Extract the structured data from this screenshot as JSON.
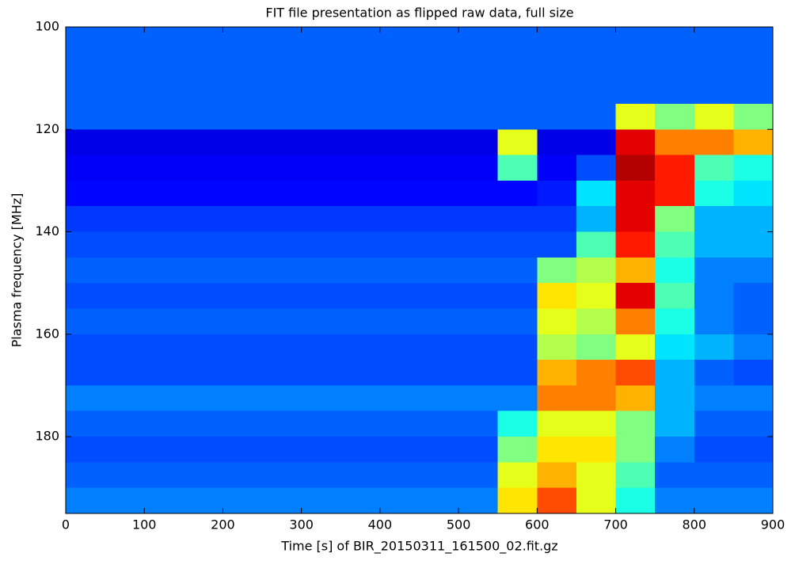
{
  "chart_data": {
    "type": "heatmap",
    "title": "FIT file presentation as flipped raw data, full size",
    "xlabel": "Time [s] of BIR_20150311_161500_02.fit.gz",
    "ylabel": "Plasma frequency [MHz]",
    "colormap": "jet",
    "y_inverted": true,
    "xlim": [
      0,
      900
    ],
    "ylim": [
      100,
      195
    ],
    "xticks": [
      0,
      100,
      200,
      300,
      400,
      500,
      600,
      700,
      800,
      900
    ],
    "yticks": [
      100,
      120,
      140,
      160,
      180
    ],
    "xbins": [
      0,
      50,
      100,
      150,
      200,
      250,
      300,
      350,
      400,
      450,
      500,
      550,
      600,
      650,
      700,
      750,
      800,
      850,
      900
    ],
    "ybins": [
      100,
      105,
      110,
      115,
      120,
      125,
      130,
      135,
      140,
      145,
      150,
      155,
      160,
      165,
      170,
      175,
      180,
      185,
      190,
      195
    ],
    "z": [
      [
        0.22,
        0.22,
        0.22,
        0.22,
        0.22,
        0.22,
        0.22,
        0.22,
        0.22,
        0.22,
        0.22,
        0.22,
        0.22,
        0.22,
        0.22,
        0.22,
        0.22,
        0.22
      ],
      [
        0.22,
        0.22,
        0.22,
        0.22,
        0.22,
        0.22,
        0.22,
        0.22,
        0.22,
        0.22,
        0.22,
        0.22,
        0.22,
        0.22,
        0.22,
        0.22,
        0.22,
        0.22
      ],
      [
        0.22,
        0.22,
        0.22,
        0.22,
        0.22,
        0.22,
        0.22,
        0.22,
        0.22,
        0.22,
        0.22,
        0.22,
        0.22,
        0.22,
        0.22,
        0.22,
        0.22,
        0.22
      ],
      [
        0.22,
        0.22,
        0.22,
        0.22,
        0.22,
        0.22,
        0.22,
        0.22,
        0.22,
        0.22,
        0.22,
        0.22,
        0.22,
        0.22,
        0.6,
        0.5,
        0.6,
        0.5
      ],
      [
        0.1,
        0.1,
        0.1,
        0.1,
        0.1,
        0.1,
        0.1,
        0.1,
        0.1,
        0.1,
        0.1,
        0.6,
        0.1,
        0.1,
        0.9,
        0.75,
        0.75,
        0.7
      ],
      [
        0.12,
        0.12,
        0.12,
        0.12,
        0.12,
        0.12,
        0.12,
        0.12,
        0.12,
        0.12,
        0.12,
        0.45,
        0.12,
        0.2,
        0.95,
        0.85,
        0.45,
        0.4
      ],
      [
        0.13,
        0.13,
        0.13,
        0.13,
        0.13,
        0.13,
        0.13,
        0.13,
        0.13,
        0.13,
        0.13,
        0.13,
        0.15,
        0.35,
        0.9,
        0.85,
        0.4,
        0.35
      ],
      [
        0.18,
        0.18,
        0.18,
        0.18,
        0.18,
        0.18,
        0.18,
        0.18,
        0.18,
        0.18,
        0.18,
        0.18,
        0.18,
        0.3,
        0.9,
        0.5,
        0.3,
        0.3
      ],
      [
        0.2,
        0.2,
        0.2,
        0.2,
        0.2,
        0.2,
        0.2,
        0.2,
        0.2,
        0.2,
        0.2,
        0.2,
        0.2,
        0.45,
        0.85,
        0.45,
        0.3,
        0.3
      ],
      [
        0.22,
        0.22,
        0.22,
        0.22,
        0.22,
        0.22,
        0.22,
        0.22,
        0.22,
        0.22,
        0.22,
        0.22,
        0.5,
        0.55,
        0.7,
        0.4,
        0.25,
        0.25
      ],
      [
        0.2,
        0.2,
        0.2,
        0.2,
        0.2,
        0.2,
        0.2,
        0.2,
        0.2,
        0.2,
        0.2,
        0.2,
        0.65,
        0.6,
        0.9,
        0.45,
        0.25,
        0.22
      ],
      [
        0.22,
        0.22,
        0.22,
        0.22,
        0.22,
        0.22,
        0.22,
        0.22,
        0.22,
        0.22,
        0.22,
        0.22,
        0.6,
        0.55,
        0.75,
        0.4,
        0.25,
        0.22
      ],
      [
        0.2,
        0.2,
        0.2,
        0.2,
        0.2,
        0.2,
        0.2,
        0.2,
        0.2,
        0.2,
        0.2,
        0.2,
        0.55,
        0.5,
        0.6,
        0.35,
        0.3,
        0.25
      ],
      [
        0.2,
        0.2,
        0.2,
        0.2,
        0.2,
        0.2,
        0.2,
        0.2,
        0.2,
        0.2,
        0.2,
        0.2,
        0.7,
        0.75,
        0.8,
        0.3,
        0.22,
        0.2
      ],
      [
        0.25,
        0.25,
        0.25,
        0.25,
        0.25,
        0.25,
        0.25,
        0.25,
        0.25,
        0.25,
        0.25,
        0.25,
        0.75,
        0.75,
        0.7,
        0.3,
        0.25,
        0.25
      ],
      [
        0.22,
        0.22,
        0.22,
        0.22,
        0.22,
        0.22,
        0.22,
        0.22,
        0.22,
        0.22,
        0.22,
        0.4,
        0.6,
        0.6,
        0.5,
        0.3,
        0.22,
        0.22
      ],
      [
        0.2,
        0.2,
        0.2,
        0.2,
        0.2,
        0.2,
        0.2,
        0.2,
        0.2,
        0.2,
        0.2,
        0.5,
        0.65,
        0.65,
        0.5,
        0.25,
        0.2,
        0.2
      ],
      [
        0.22,
        0.22,
        0.22,
        0.22,
        0.22,
        0.22,
        0.22,
        0.22,
        0.22,
        0.22,
        0.22,
        0.6,
        0.7,
        0.6,
        0.45,
        0.22,
        0.22,
        0.22
      ],
      [
        0.25,
        0.25,
        0.25,
        0.25,
        0.25,
        0.25,
        0.25,
        0.25,
        0.25,
        0.25,
        0.25,
        0.65,
        0.8,
        0.6,
        0.4,
        0.25,
        0.25,
        0.25
      ]
    ]
  }
}
